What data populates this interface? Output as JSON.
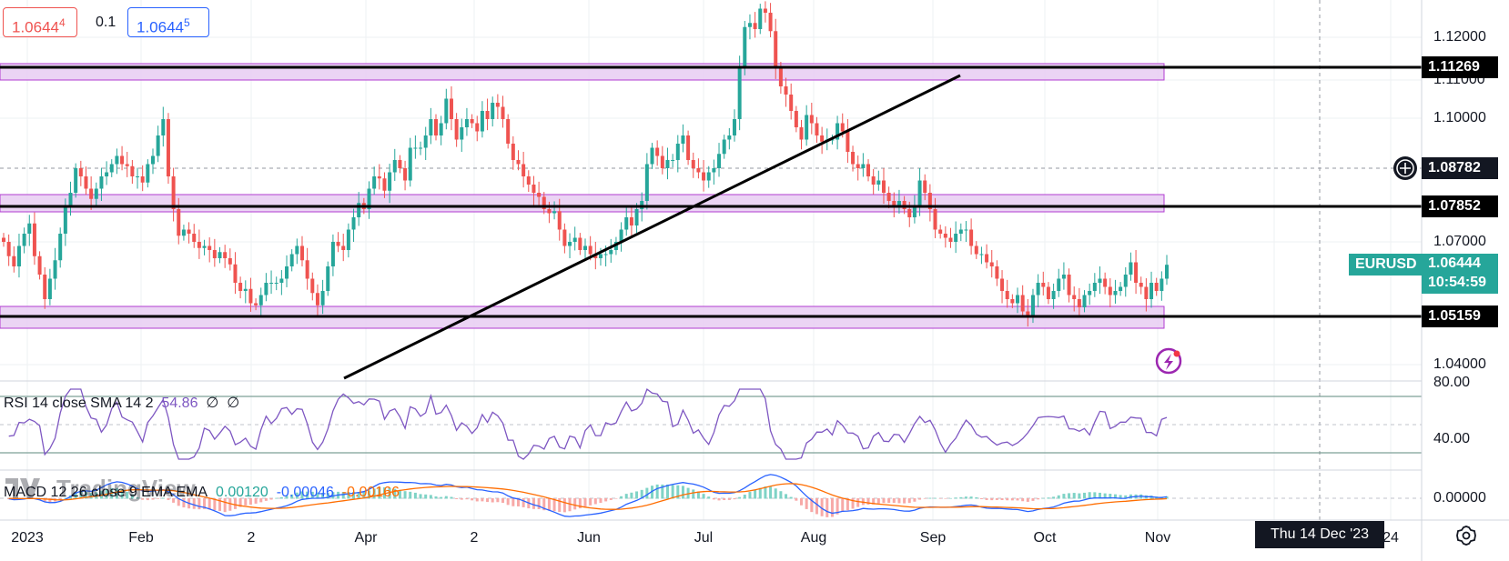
{
  "symbol": "EURUSD",
  "countdown": "10:54:59",
  "bid": {
    "main": "1.0644",
    "small": "4"
  },
  "ask": {
    "main": "1.0644",
    "small": "5"
  },
  "spread": "0.1",
  "current_price": "1.06444",
  "crosshair_price": "1.08782",
  "crosshair_date": "Thu 14 Dec '23",
  "levels": [
    {
      "value": 1.11269,
      "label": "1.11269"
    },
    {
      "value": 1.07852,
      "label": "1.07852"
    },
    {
      "value": 1.05159,
      "label": "1.05159"
    }
  ],
  "y_ticks": [
    "1.12000",
    "1.11000",
    "1.10000",
    "1.07000",
    "1.04000"
  ],
  "x_ticks": [
    "2023",
    "Feb",
    "2",
    "Apr",
    "2",
    "Jun",
    "Jul",
    "Aug",
    "Sep",
    "Oct",
    "Nov",
    "24"
  ],
  "rsi": {
    "label": "RSI 14 close SMA 14 2",
    "value": "54.86",
    "na1": "∅",
    "na2": "∅",
    "ticks": [
      "80.00",
      "40.00"
    ]
  },
  "macd": {
    "label": "MACD 12 26 close 9 EMA EMA",
    "v1": "0.00120",
    "v2": "-0.00046",
    "v3": "-0.00166",
    "tick": "0.00000"
  },
  "watermark": "TradingView",
  "colors": {
    "up": "#26a69a",
    "down": "#ef5350",
    "zone_fill": "#e7cdf2",
    "zone_stroke": "#b23cd1",
    "rsi": "#7e57c2",
    "macd": "#2962ff",
    "signal": "#ff6d00",
    "symbol_bg": "#26a69a"
  },
  "chart_data": {
    "type": "candlestick",
    "ylim": [
      1.0335,
      1.1295
    ],
    "xlim_dates": [
      "2023-01-01",
      "2024-01-10"
    ],
    "ohlc_close": [
      1.07,
      1.0665,
      1.064,
      1.069,
      1.072,
      1.0745,
      1.0665,
      1.062,
      1.056,
      1.061,
      1.0655,
      1.072,
      1.0785,
      1.082,
      1.088,
      1.086,
      1.083,
      1.0805,
      1.083,
      1.086,
      1.087,
      1.089,
      1.091,
      1.089,
      1.0885,
      1.086,
      1.086,
      1.0845,
      1.089,
      1.091,
      1.096,
      1.1,
      1.086,
      1.078,
      1.0715,
      1.073,
      1.072,
      1.07,
      1.0685,
      1.069,
      1.068,
      1.066,
      1.0675,
      1.066,
      1.0645,
      1.06,
      1.058,
      1.0585,
      1.055,
      1.0545,
      1.057,
      1.06,
      1.06,
      1.06,
      1.061,
      1.064,
      1.067,
      1.069,
      1.0655,
      1.061,
      1.0575,
      1.0545,
      1.058,
      1.064,
      1.07,
      1.069,
      1.068,
      1.073,
      1.076,
      1.0795,
      1.078,
      1.083,
      1.086,
      1.0855,
      1.0825,
      1.087,
      1.09,
      1.088,
      1.085,
      1.093,
      1.093,
      1.093,
      1.096,
      1.1,
      1.096,
      1.099,
      1.105,
      1.1,
      1.095,
      1.098,
      1.1,
      1.099,
      1.097,
      1.102,
      1.1,
      1.104,
      1.103,
      1.1,
      1.094,
      1.09,
      1.089,
      1.086,
      1.084,
      1.082,
      1.081,
      1.078,
      1.077,
      1.0775,
      1.073,
      1.069,
      1.07,
      1.071,
      1.068,
      1.069,
      1.067,
      1.066,
      1.067,
      1.067,
      1.068,
      1.07,
      1.073,
      1.076,
      1.074,
      1.078,
      1.08,
      1.089,
      1.093,
      1.091,
      1.088,
      1.09,
      1.09,
      1.094,
      1.096,
      1.09,
      1.088,
      1.087,
      1.085,
      1.087,
      1.088,
      1.0915,
      1.095,
      1.096,
      1.1,
      1.1125,
      1.1225,
      1.1235,
      1.122,
      1.127,
      1.126,
      1.1215,
      1.1125,
      1.108,
      1.106,
      1.102,
      1.098,
      1.095,
      1.101,
      1.099,
      1.096,
      1.0945,
      1.095,
      1.095,
      1.099,
      1.097,
      1.092,
      1.089,
      1.088,
      1.089,
      1.086,
      1.084,
      1.085,
      1.082,
      1.08,
      1.079,
      1.08,
      1.078,
      1.076,
      1.079,
      1.085,
      1.082,
      1.078,
      1.073,
      1.072,
      1.071,
      1.07,
      1.072,
      1.073,
      1.073,
      1.069,
      1.067,
      1.067,
      1.065,
      1.064,
      1.061,
      1.058,
      1.056,
      1.055,
      1.057,
      1.053,
      1.052,
      1.057,
      1.06,
      1.059,
      1.056,
      1.058,
      1.061,
      1.062,
      1.057,
      1.056,
      1.054,
      1.057,
      1.058,
      1.06,
      1.061,
      1.059,
      1.057,
      1.058,
      1.059,
      1.062,
      1.065,
      1.06,
      1.059,
      1.056,
      1.06,
      1.058,
      1.061,
      1.0644
    ]
  }
}
